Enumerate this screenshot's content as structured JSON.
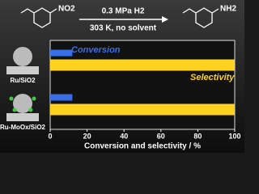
{
  "scheme": {
    "reactant_group": "NO2",
    "condition_1": "0.3 MPa H2",
    "condition_2": "303 K, no solvent",
    "product_group": "NH2"
  },
  "chart_data": {
    "type": "bar",
    "orientation": "horizontal",
    "x_label": "Conversion and selectivity / %",
    "categories": [
      "Ru/SiO2",
      "Ru-MoOx/SiO2"
    ],
    "series": [
      {
        "name": "Conversion",
        "color": "#3a6ee8",
        "values": [
          12,
          12
        ]
      },
      {
        "name": "Selectivity",
        "color": "#ffd21f",
        "values": [
          100,
          100
        ]
      }
    ],
    "xlim": [
      0,
      100
    ],
    "xticks": [
      0,
      20,
      40,
      60,
      80,
      100
    ]
  }
}
